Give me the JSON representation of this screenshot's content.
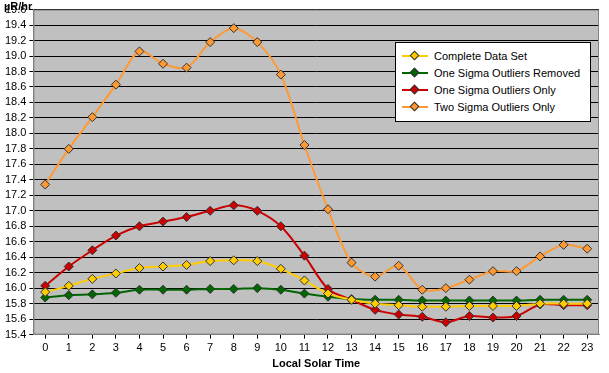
{
  "chart_data": {
    "type": "line",
    "y_label": "µR/hr",
    "x_label": "Local Solar Time",
    "categories": [
      "0",
      "1",
      "2",
      "3",
      "4",
      "5",
      "6",
      "7",
      "8",
      "9",
      "10",
      "11",
      "12",
      "13",
      "14",
      "15",
      "16",
      "17",
      "18",
      "19",
      "20",
      "21",
      "22",
      "23"
    ],
    "series": [
      {
        "name": "Complete Data Set",
        "color": "#FFCC00",
        "marker": "diamond",
        "values": [
          15.95,
          16.03,
          16.12,
          16.19,
          16.26,
          16.28,
          16.3,
          16.35,
          16.36,
          16.35,
          16.25,
          16.1,
          15.93,
          15.85,
          15.8,
          15.78,
          15.76,
          15.76,
          15.77,
          15.77,
          15.77,
          15.8,
          15.8,
          15.8
        ]
      },
      {
        "name": "One Sigma Outliers Removed",
        "color": "#006600",
        "marker": "diamond",
        "values": [
          15.88,
          15.91,
          15.92,
          15.94,
          15.98,
          15.98,
          15.98,
          15.99,
          15.99,
          16.0,
          15.98,
          15.93,
          15.89,
          15.86,
          15.85,
          15.85,
          15.84,
          15.84,
          15.84,
          15.84,
          15.84,
          15.85,
          15.85,
          15.85
        ]
      },
      {
        "name": "One Sigma Outliers Only",
        "color": "#CC0000",
        "marker": "diamond",
        "values": [
          16.03,
          16.28,
          16.49,
          16.68,
          16.8,
          16.86,
          16.92,
          17.0,
          17.07,
          17.0,
          16.8,
          16.42,
          15.99,
          15.85,
          15.72,
          15.66,
          15.63,
          15.56,
          15.64,
          15.62,
          15.64,
          15.79,
          15.78,
          15.78
        ]
      },
      {
        "name": "Two Sigma Outliers Only",
        "color": "#FF9933",
        "marker": "diamond",
        "values": [
          17.34,
          17.8,
          18.21,
          18.63,
          19.06,
          18.9,
          18.85,
          19.18,
          19.36,
          19.18,
          18.76,
          17.85,
          17.02,
          16.33,
          16.15,
          16.29,
          15.98,
          16.0,
          16.11,
          16.22,
          16.22,
          16.41,
          16.56,
          16.51
        ]
      }
    ],
    "ylim": [
      15.4,
      19.6
    ],
    "yticks": [
      15.4,
      15.6,
      15.8,
      {
        "value": 16,
        "label": "16.0"
      },
      16.2,
      16.4,
      16.6,
      16.8,
      {
        "value": 17,
        "label": "17.0"
      },
      17.2,
      17.4,
      17.6,
      17.8,
      {
        "value": 18,
        "label": "18.0"
      },
      18.2,
      18.4,
      18.6,
      18.8,
      {
        "value": 19,
        "label": "19.0"
      },
      19.2,
      19.4,
      19.6
    ],
    "grid": true,
    "legend": "top-right"
  }
}
